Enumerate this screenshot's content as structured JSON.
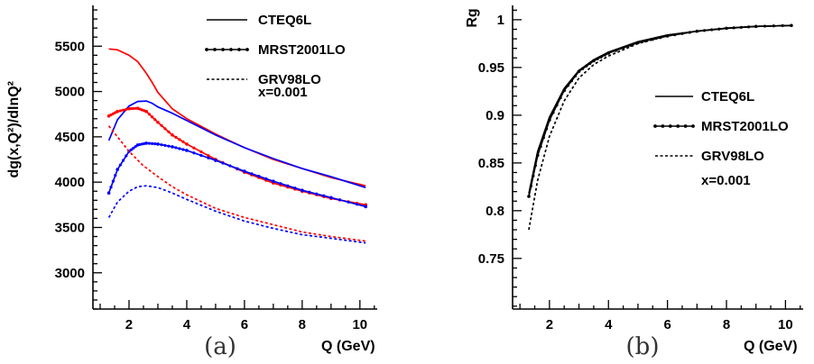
{
  "chart_data": [
    {
      "type": "line",
      "panel_tag": "(a)",
      "ylabel": "dg(x,Q²)/dlnQ²",
      "xlabel": "Q (GeV)",
      "xlim": [
        0.75,
        10.6
      ],
      "ylim": [
        2600,
        5950
      ],
      "xticks": [
        2,
        4,
        6,
        8,
        10
      ],
      "yticks": [
        3000,
        3500,
        4000,
        4500,
        5000,
        5500
      ],
      "legend": {
        "position": "top-right",
        "entries": [
          "CTEQ6L",
          "MRST2001LO",
          "GRV98LO"
        ],
        "note": "x=0.001"
      },
      "series": [
        {
          "name": "CTEQ6L",
          "color": "#ff0000",
          "style": "solid",
          "x": [
            1.3,
            1.6,
            2.0,
            2.3,
            2.6,
            2.8,
            3.0,
            3.5,
            4,
            5,
            6,
            7,
            8,
            9,
            10.2
          ],
          "y": [
            5470,
            5460,
            5400,
            5330,
            5200,
            5100,
            4990,
            4810,
            4700,
            4530,
            4380,
            4250,
            4150,
            4050,
            3960
          ]
        },
        {
          "name": "CTEQ6L",
          "color": "#0000ff",
          "style": "solid",
          "x": [
            1.3,
            1.6,
            2.0,
            2.3,
            2.6,
            2.8,
            3.0,
            3.5,
            4,
            5,
            6,
            7,
            8,
            9,
            10.2
          ],
          "y": [
            4460,
            4690,
            4840,
            4890,
            4895,
            4870,
            4830,
            4760,
            4680,
            4520,
            4380,
            4260,
            4150,
            4060,
            3940
          ]
        },
        {
          "name": "MRST2001LO",
          "color": "#ff0000",
          "style": "dotted-line",
          "x": [
            1.3,
            1.6,
            2.0,
            2.3,
            2.6,
            3.0,
            3.5,
            4,
            5,
            6,
            7,
            8,
            9,
            10.2
          ],
          "y": [
            4730,
            4780,
            4810,
            4815,
            4780,
            4660,
            4520,
            4420,
            4250,
            4110,
            3990,
            3900,
            3820,
            3750
          ]
        },
        {
          "name": "MRST2001LO",
          "color": "#0000ff",
          "style": "dotted-line",
          "x": [
            1.3,
            1.6,
            2.0,
            2.3,
            2.6,
            3.0,
            3.5,
            4,
            5,
            6,
            7,
            8,
            9,
            10.2
          ],
          "y": [
            3880,
            4140,
            4340,
            4410,
            4430,
            4420,
            4390,
            4350,
            4240,
            4120,
            4010,
            3910,
            3830,
            3730
          ]
        },
        {
          "name": "GRV98LO",
          "color": "#ff0000",
          "style": "dashed",
          "x": [
            1.3,
            1.6,
            2.0,
            2.5,
            3.0,
            3.5,
            4,
            5,
            6,
            7,
            8,
            9,
            10.2
          ],
          "y": [
            4620,
            4500,
            4340,
            4180,
            4060,
            3950,
            3860,
            3710,
            3610,
            3530,
            3450,
            3400,
            3350
          ]
        },
        {
          "name": "GRV98LO",
          "color": "#0000ff",
          "style": "dashed",
          "x": [
            1.3,
            1.6,
            2.0,
            2.3,
            2.6,
            3.0,
            3.5,
            4,
            5,
            6,
            7,
            8,
            9,
            10.2
          ],
          "y": [
            3610,
            3780,
            3900,
            3950,
            3960,
            3940,
            3880,
            3810,
            3680,
            3570,
            3490,
            3420,
            3380,
            3330
          ]
        }
      ]
    },
    {
      "type": "line",
      "panel_tag": "(b)",
      "ylabel": "Rg",
      "xlabel": "Q (GeV)",
      "xlim": [
        0.75,
        10.6
      ],
      "ylim": [
        0.697,
        1.015
      ],
      "xticks": [
        2,
        4,
        6,
        8,
        10
      ],
      "yticks": [
        0.75,
        0.8,
        0.85,
        0.9,
        0.95,
        1
      ],
      "ytick_labels": [
        "0.75",
        "0.8",
        "0.85",
        "0.9",
        "0.95",
        "1"
      ],
      "legend": {
        "position": "right",
        "entries": [
          "CTEQ6L",
          "MRST2001LO",
          "GRV98LO"
        ],
        "note": "x=0.001"
      },
      "series": [
        {
          "name": "CTEQ6L",
          "color": "#000000",
          "style": "solid",
          "x": [
            1.3,
            1.6,
            2.0,
            2.5,
            3.0,
            3.5,
            4,
            5,
            6,
            7,
            8,
            9,
            10.2
          ],
          "y": [
            0.818,
            0.862,
            0.898,
            0.928,
            0.947,
            0.958,
            0.966,
            0.977,
            0.984,
            0.988,
            0.991,
            0.993,
            0.994
          ]
        },
        {
          "name": "MRST2001LO",
          "color": "#000000",
          "style": "dotted-line",
          "x": [
            1.3,
            1.6,
            2.0,
            2.5,
            3.0,
            3.5,
            4,
            5,
            6,
            7,
            8,
            9,
            10.2
          ],
          "y": [
            0.815,
            0.858,
            0.895,
            0.926,
            0.946,
            0.957,
            0.965,
            0.976,
            0.983,
            0.988,
            0.991,
            0.993,
            0.994
          ]
        },
        {
          "name": "GRV98LO",
          "color": "#000000",
          "style": "dashed",
          "x": [
            1.3,
            1.6,
            2.0,
            2.5,
            3.0,
            3.5,
            4,
            5,
            6,
            7,
            8,
            9,
            10.2
          ],
          "y": [
            0.78,
            0.832,
            0.878,
            0.915,
            0.939,
            0.953,
            0.962,
            0.975,
            0.983,
            0.988,
            0.991,
            0.993,
            0.994
          ]
        }
      ]
    }
  ]
}
